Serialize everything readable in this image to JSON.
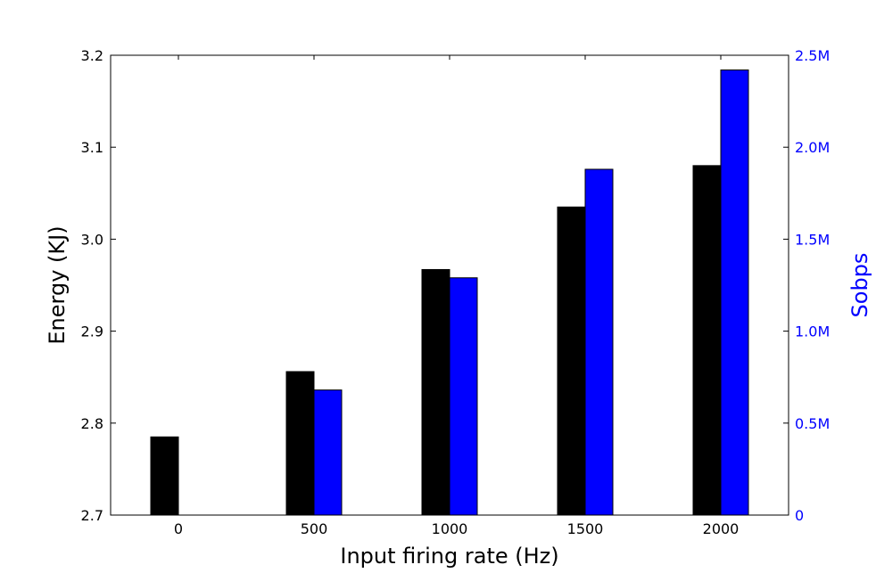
{
  "chart_data": {
    "type": "bar",
    "xlabel": "Input firing rate (Hz)",
    "ylabel": "Energy (KJ)",
    "y2label": "Sobps",
    "categories": [
      "0",
      "500",
      "1000",
      "1500",
      "2000"
    ],
    "ylim": [
      2.7,
      3.2
    ],
    "y2lim": [
      0,
      2500000
    ],
    "yticks": [
      "2.7",
      "2.8",
      "2.9",
      "3.0",
      "3.1",
      "3.2"
    ],
    "y2ticks": [
      "0",
      "0.5M",
      "1.0M",
      "1.5M",
      "2.0M",
      "2.5M"
    ],
    "series": [
      {
        "axis": "left",
        "color": "#000000",
        "values": [
          2.785,
          2.856,
          2.967,
          3.035,
          3.08
        ]
      },
      {
        "axis": "right",
        "color": "#0000ff",
        "values": [
          0,
          680000,
          1290000,
          1880000,
          2420000
        ]
      }
    ],
    "grid": false
  }
}
